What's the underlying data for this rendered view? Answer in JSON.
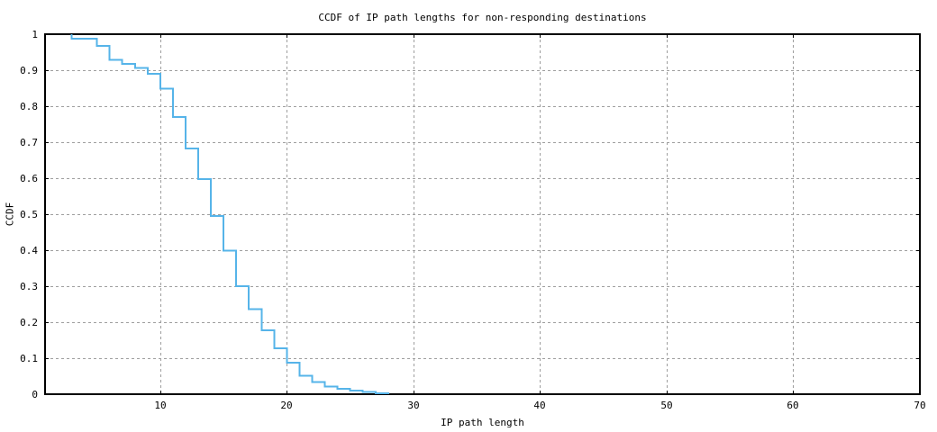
{
  "title": "CCDF of IP path lengths for non-responding destinations",
  "chart_data": {
    "type": "line",
    "subtype": "step",
    "title": "CCDF of IP path lengths for non-responding destinations",
    "xlabel": "IP path length",
    "ylabel": "CCDF",
    "xlim": [
      0.9,
      70
    ],
    "ylim": [
      0,
      1
    ],
    "x_ticks": [
      10,
      20,
      30,
      40,
      50,
      60,
      70
    ],
    "y_ticks": [
      {
        "value": 0,
        "label": "0"
      },
      {
        "value": 0.1,
        "label": "0.1"
      },
      {
        "value": 0.2,
        "label": "0.2"
      },
      {
        "value": 0.3,
        "label": "0.3"
      },
      {
        "value": 0.4,
        "label": "0.4"
      },
      {
        "value": 0.5,
        "label": "0.5"
      },
      {
        "value": 0.6,
        "label": "0.6"
      },
      {
        "value": 0.7,
        "label": "0.7"
      },
      {
        "value": 0.8,
        "label": "0.8"
      },
      {
        "value": 0.9,
        "label": "0.9"
      },
      {
        "value": 1,
        "label": "1"
      }
    ],
    "grid": "dotted",
    "legend": "none",
    "start_point": {
      "x": 3,
      "ccdf": 1.0
    },
    "steps": [
      {
        "x": 3,
        "ccdf": 0.988
      },
      {
        "x": 5,
        "ccdf": 0.967
      },
      {
        "x": 6,
        "ccdf": 0.929
      },
      {
        "x": 7,
        "ccdf": 0.917
      },
      {
        "x": 8,
        "ccdf": 0.906
      },
      {
        "x": 9,
        "ccdf": 0.89
      },
      {
        "x": 10,
        "ccdf": 0.849
      },
      {
        "x": 11,
        "ccdf": 0.77
      },
      {
        "x": 12,
        "ccdf": 0.683
      },
      {
        "x": 13,
        "ccdf": 0.597
      },
      {
        "x": 14,
        "ccdf": 0.495
      },
      {
        "x": 15,
        "ccdf": 0.399
      },
      {
        "x": 16,
        "ccdf": 0.3
      },
      {
        "x": 17,
        "ccdf": 0.236
      },
      {
        "x": 18,
        "ccdf": 0.178
      },
      {
        "x": 19,
        "ccdf": 0.128
      },
      {
        "x": 20,
        "ccdf": 0.087
      },
      {
        "x": 21,
        "ccdf": 0.051
      },
      {
        "x": 22,
        "ccdf": 0.034
      },
      {
        "x": 23,
        "ccdf": 0.021
      },
      {
        "x": 24,
        "ccdf": 0.015
      },
      {
        "x": 25,
        "ccdf": 0.01
      },
      {
        "x": 26,
        "ccdf": 0.006
      },
      {
        "x": 27,
        "ccdf": 0.003
      },
      {
        "x": 28,
        "ccdf": 0.0
      }
    ]
  },
  "colors": {
    "line": "#56b4e9",
    "grid": "#9e9e9e",
    "axis": "#000000",
    "background": "#ffffff"
  }
}
